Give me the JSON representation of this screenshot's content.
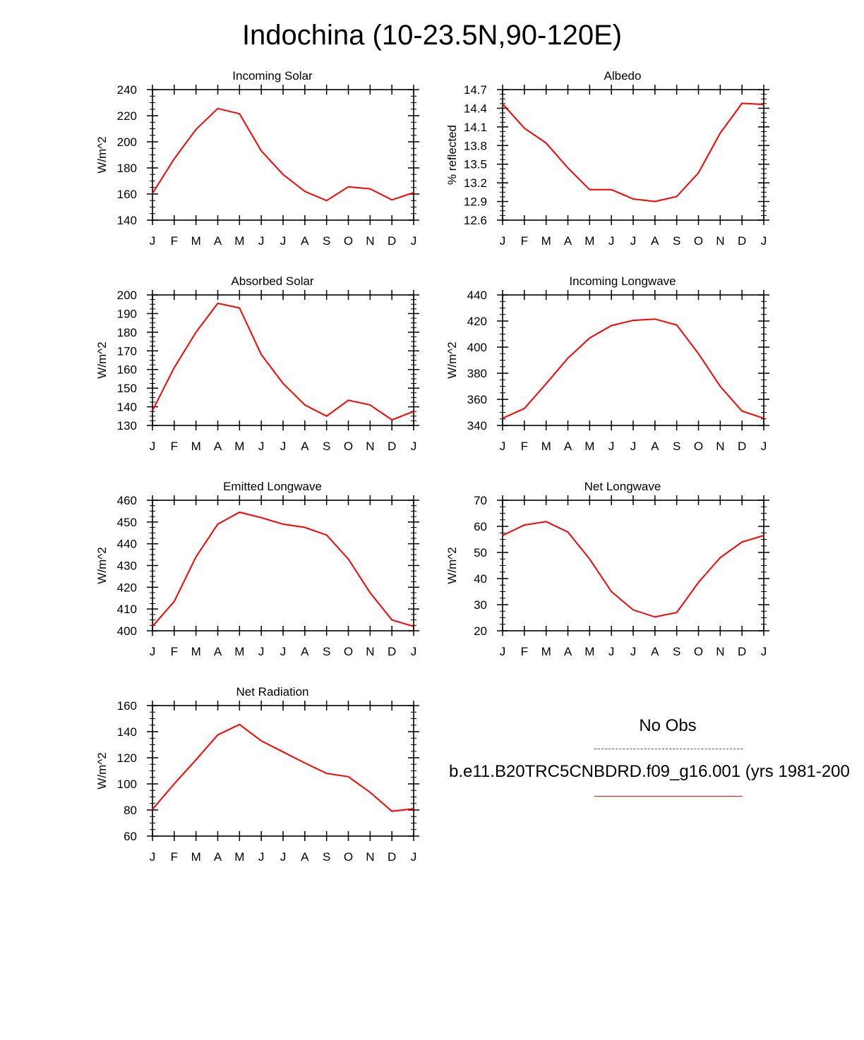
{
  "title": "Indochina (10-23.5N,90-120E)",
  "legend": {
    "obs_label": "No Obs",
    "case_label": "b.e11.B20TRC5CNBDRD.f09_g16.001 (yrs 1981-200",
    "obs_color": "#4a4aff",
    "case_color": "#ff0000"
  },
  "chart_data": [
    {
      "type": "line",
      "title": "Incoming Solar",
      "ylabel": "W/m^2",
      "xlabel": "",
      "categories": [
        "J",
        "F",
        "M",
        "A",
        "M",
        "J",
        "J",
        "A",
        "S",
        "O",
        "N",
        "D",
        "J"
      ],
      "ylim": [
        140,
        240
      ],
      "yticks": [
        "140",
        "160",
        "180",
        "200",
        "220",
        "240"
      ],
      "series": [
        {
          "values": [
            160.5,
            187,
            209.5,
            225.5,
            221.5,
            193,
            175,
            162,
            155,
            165.5,
            164,
            155.5,
            161
          ]
        }
      ]
    },
    {
      "type": "line",
      "title": "Albedo",
      "ylabel": "% reflected",
      "xlabel": "",
      "categories": [
        "J",
        "F",
        "M",
        "A",
        "M",
        "J",
        "J",
        "A",
        "S",
        "O",
        "N",
        "D",
        "J"
      ],
      "ylim": [
        12.6,
        14.7
      ],
      "yticks": [
        "12.6",
        "12.9",
        "13.2",
        "13.5",
        "13.8",
        "14.1",
        "14.4",
        "14.7"
      ],
      "series": [
        {
          "values": [
            14.47,
            14.08,
            13.84,
            13.44,
            13.09,
            13.09,
            12.94,
            12.9,
            12.98,
            13.36,
            14.0,
            14.48,
            14.46
          ]
        }
      ]
    },
    {
      "type": "line",
      "title": "Absorbed Solar",
      "ylabel": "W/m^2",
      "xlabel": "",
      "categories": [
        "J",
        "F",
        "M",
        "A",
        "M",
        "J",
        "J",
        "A",
        "S",
        "O",
        "N",
        "D",
        "J"
      ],
      "ylim": [
        130,
        200
      ],
      "yticks": [
        "130",
        "140",
        "150",
        "160",
        "170",
        "180",
        "190",
        "200"
      ],
      "series": [
        {
          "values": [
            138,
            161,
            180,
            195.5,
            193,
            168,
            152.5,
            141,
            135,
            143.5,
            141,
            133,
            137.5
          ]
        }
      ]
    },
    {
      "type": "line",
      "title": "Incoming Longwave",
      "ylabel": "W/m^2",
      "xlabel": "",
      "categories": [
        "J",
        "F",
        "M",
        "A",
        "M",
        "J",
        "J",
        "A",
        "S",
        "O",
        "N",
        "D",
        "J"
      ],
      "ylim": [
        340,
        440
      ],
      "yticks": [
        "340",
        "360",
        "380",
        "400",
        "420",
        "440"
      ],
      "series": [
        {
          "values": [
            345.5,
            353,
            372,
            391.5,
            407,
            416.5,
            420.5,
            421.5,
            417,
            395,
            370,
            351,
            345.5
          ]
        }
      ]
    },
    {
      "type": "line",
      "title": "Emitted Longwave",
      "ylabel": "W/m^2",
      "xlabel": "",
      "categories": [
        "J",
        "F",
        "M",
        "A",
        "M",
        "J",
        "J",
        "A",
        "S",
        "O",
        "N",
        "D",
        "J"
      ],
      "ylim": [
        400,
        460
      ],
      "yticks": [
        "400",
        "410",
        "420",
        "430",
        "440",
        "450",
        "460"
      ],
      "series": [
        {
          "values": [
            402,
            413.5,
            434,
            449,
            454.5,
            452,
            449,
            447.5,
            444,
            433,
            417.5,
            405,
            402
          ]
        }
      ]
    },
    {
      "type": "line",
      "title": "Net Longwave",
      "ylabel": "W/m^2",
      "xlabel": "",
      "categories": [
        "J",
        "F",
        "M",
        "A",
        "M",
        "J",
        "J",
        "A",
        "S",
        "O",
        "N",
        "D",
        "J"
      ],
      "ylim": [
        20,
        70
      ],
      "yticks": [
        "20",
        "30",
        "40",
        "50",
        "60",
        "70"
      ],
      "series": [
        {
          "values": [
            56.5,
            60.5,
            61.8,
            57.8,
            47.5,
            35,
            28,
            25.3,
            27,
            38.5,
            48,
            54,
            56.5
          ]
        }
      ]
    },
    {
      "type": "line",
      "title": "Net Radiation",
      "ylabel": "W/m^2",
      "xlabel": "",
      "categories": [
        "J",
        "F",
        "M",
        "A",
        "M",
        "J",
        "J",
        "A",
        "S",
        "O",
        "N",
        "D",
        "J"
      ],
      "ylim": [
        60,
        160
      ],
      "yticks": [
        "60",
        "80",
        "100",
        "120",
        "140",
        "160"
      ],
      "series": [
        {
          "values": [
            80.5,
            100,
            118.5,
            137.5,
            145.5,
            133,
            124.5,
            116,
            108,
            105.5,
            93.5,
            79,
            81
          ]
        }
      ]
    }
  ]
}
